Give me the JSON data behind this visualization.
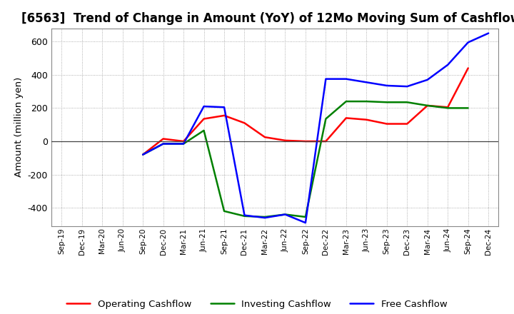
{
  "title": "[6563]  Trend of Change in Amount (YoY) of 12Mo Moving Sum of Cashflows",
  "ylabel": "Amount (million yen)",
  "background_color": "#ffffff",
  "grid_color": "#999999",
  "title_fontsize": 12,
  "x_labels": [
    "Sep-19",
    "Dec-19",
    "Mar-20",
    "Jun-20",
    "Sep-20",
    "Dec-20",
    "Mar-21",
    "Jun-21",
    "Sep-21",
    "Dec-21",
    "Mar-22",
    "Jun-22",
    "Sep-22",
    "Dec-22",
    "Mar-23",
    "Jun-23",
    "Sep-23",
    "Dec-23",
    "Mar-24",
    "Jun-24",
    "Sep-24",
    "Dec-24"
  ],
  "operating": [
    null,
    null,
    null,
    null,
    -80,
    15,
    0,
    135,
    155,
    110,
    25,
    5,
    0,
    0,
    140,
    130,
    105,
    105,
    215,
    205,
    440,
    null
  ],
  "investing": [
    null,
    null,
    null,
    null,
    -80,
    -15,
    -15,
    65,
    -420,
    -450,
    -455,
    -440,
    -455,
    135,
    240,
    240,
    235,
    235,
    215,
    200,
    200,
    null
  ],
  "free": [
    null,
    null,
    null,
    null,
    -80,
    -15,
    -15,
    210,
    205,
    -445,
    -460,
    -440,
    -490,
    375,
    375,
    355,
    335,
    330,
    370,
    460,
    595,
    650
  ],
  "operating_color": "#ff0000",
  "investing_color": "#008000",
  "free_color": "#0000ff",
  "ylim": [
    -510,
    680
  ],
  "yticks": [
    -400,
    -200,
    0,
    200,
    400,
    600
  ]
}
